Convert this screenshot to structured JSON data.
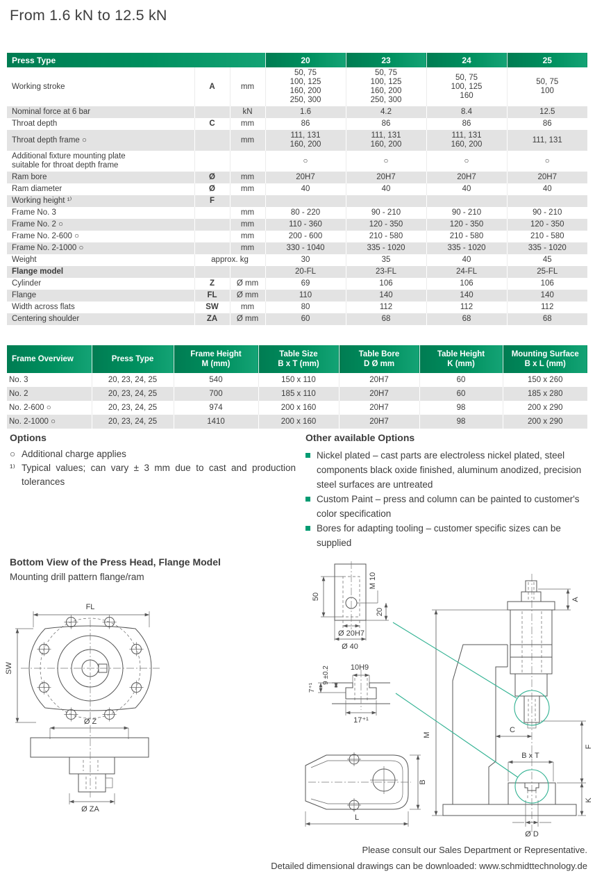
{
  "page": {
    "title": "From 1.6 kN to 12.5 kN",
    "footer_line1": "Please consult our Sales Department or Representative.",
    "footer_line2": "Detailed dimensional drawings can be downloaded: www.schmidttechnology.de"
  },
  "colors": {
    "header_green_dark": "#007C52",
    "header_green_light": "#14A375",
    "row_shaded": "#E3E3E3",
    "bullet_green": "#009B72",
    "drawing_green": "#2FB191"
  },
  "spec_table": {
    "header": {
      "label": "Press Type",
      "columns": [
        "20",
        "23",
        "24",
        "25"
      ]
    },
    "rows": [
      {
        "label": "Working stroke",
        "sym": "A",
        "unit": "mm",
        "shaded": false,
        "values": [
          [
            "50, 75",
            "100, 125",
            "160, 200",
            "250, 300"
          ],
          [
            "50, 75",
            "100, 125",
            "160, 200",
            "250, 300"
          ],
          [
            "50, 75",
            "100, 125",
            "160"
          ],
          [
            "50, 75",
            "100"
          ]
        ]
      },
      {
        "label": "Nominal force at 6 bar",
        "sym": "",
        "unit": "kN",
        "shaded": true,
        "values": [
          "1.6",
          "4.2",
          "8.4",
          "12.5"
        ]
      },
      {
        "label": "Throat depth",
        "sym": "C",
        "unit": "mm",
        "shaded": false,
        "values": [
          "86",
          "86",
          "86",
          "86"
        ]
      },
      {
        "label": "Throat depth frame ○",
        "sym": "",
        "unit": "mm",
        "shaded": true,
        "values": [
          [
            "111, 131",
            "160, 200"
          ],
          [
            "111, 131",
            "160, 200"
          ],
          [
            "111, 131",
            "160, 200"
          ],
          [
            "111, 131"
          ]
        ]
      },
      {
        "label": "Additional fixture mounting plate\nsuitable for throat depth frame",
        "sym": "",
        "unit": "",
        "shaded": false,
        "values": [
          "○",
          "○",
          "○",
          "○"
        ]
      },
      {
        "label": "Ram bore",
        "sym": "Ø",
        "unit": "mm",
        "shaded": true,
        "values": [
          "20H7",
          "20H7",
          "20H7",
          "20H7"
        ]
      },
      {
        "label": "Ram diameter",
        "sym": "Ø",
        "unit": "mm",
        "shaded": false,
        "values": [
          "40",
          "40",
          "40",
          "40"
        ]
      },
      {
        "label": "Working height ¹⁾",
        "sym": "F",
        "unit": "",
        "shaded": true,
        "values": [
          "",
          "",
          "",
          ""
        ]
      },
      {
        "label": "Frame No. 3",
        "sym": "",
        "unit": "mm",
        "shaded": false,
        "values": [
          "80 - 220",
          "90 - 210",
          "90 - 210",
          "90 - 210"
        ]
      },
      {
        "label": "Frame No. 2 ○",
        "sym": "",
        "unit": "mm",
        "shaded": true,
        "values": [
          "110 - 360",
          "120 - 350",
          "120 - 350",
          "120 - 350"
        ]
      },
      {
        "label": "Frame No. 2-600 ○",
        "sym": "",
        "unit": "mm",
        "shaded": false,
        "values": [
          "200 - 600",
          "210 - 580",
          "210 - 580",
          "210 - 580"
        ]
      },
      {
        "label": "Frame No. 2-1000 ○",
        "sym": "",
        "unit": "mm",
        "shaded": true,
        "values": [
          "330 - 1040",
          "335 - 1020",
          "335 - 1020",
          "335 - 1020"
        ]
      },
      {
        "label": "Weight",
        "unit_span": "approx. kg",
        "shaded": false,
        "values": [
          "30",
          "35",
          "40",
          "45"
        ]
      },
      {
        "label": "Flange model",
        "bold": true,
        "sym": "",
        "unit": "",
        "shaded": true,
        "values": [
          "20-FL",
          "23-FL",
          "24-FL",
          "25-FL"
        ]
      },
      {
        "label": "Cylinder",
        "sym": "Z",
        "unit": "Ø mm",
        "shaded": false,
        "values": [
          "69",
          "106",
          "106",
          "106"
        ]
      },
      {
        "label": "Flange",
        "sym": "FL",
        "unit": "Ø mm",
        "shaded": true,
        "values": [
          "110",
          "140",
          "140",
          "140"
        ]
      },
      {
        "label": "Width across flats",
        "sym": "SW",
        "unit": "mm",
        "shaded": false,
        "values": [
          "80",
          "112",
          "112",
          "112"
        ]
      },
      {
        "label": "Centering shoulder",
        "sym": "ZA",
        "unit": "Ø mm",
        "shaded": true,
        "values": [
          "60",
          "68",
          "68",
          "68"
        ]
      }
    ]
  },
  "frame_table": {
    "headers": [
      {
        "l1": "Frame Overview",
        "l2": ""
      },
      {
        "l1": "Press Type",
        "l2": ""
      },
      {
        "l1": "Frame Height",
        "l2": "M (mm)"
      },
      {
        "l1": "Table Size",
        "l2": "B x T (mm)"
      },
      {
        "l1": "Table Bore",
        "l2": "D Ø mm"
      },
      {
        "l1": "Table Height",
        "l2": "K (mm)"
      },
      {
        "l1": "Mounting Surface",
        "l2": "B x L (mm)"
      }
    ],
    "rows": [
      {
        "shaded": false,
        "cells": [
          "No. 3",
          "20, 23, 24, 25",
          "540",
          "150 x 110",
          "20H7",
          "60",
          "150 x 260"
        ]
      },
      {
        "shaded": true,
        "cells": [
          "No. 2",
          "20, 23, 24, 25",
          "700",
          "185 x 110",
          "20H7",
          "60",
          "185 x 280"
        ]
      },
      {
        "shaded": false,
        "cells": [
          "No. 2-600 ○",
          "20, 23, 24, 25",
          "974",
          "200 x 160",
          "20H7",
          "98",
          "200 x 290"
        ]
      },
      {
        "shaded": true,
        "cells": [
          "No. 2-1000 ○",
          "20, 23, 24, 25",
          "1410",
          "200 x 160",
          "20H7",
          "98",
          "200 x 290"
        ]
      }
    ]
  },
  "options": {
    "title": "Options",
    "items": [
      {
        "prefix": "○",
        "text": "Additional charge applies"
      },
      {
        "prefix": "¹⁾",
        "text": "Typical values; can vary ± 3 mm due to cast and production tolerances"
      }
    ]
  },
  "other_options": {
    "title": "Other available Options",
    "items": [
      "Nickel plated – cast parts are electroless nickel plated, steel components black oxide finished, aluminum anodized, precision steel surfaces are untreated",
      "Custom Paint – press and column can be painted to customer's color specification",
      "Bores for adapting tooling – customer specific sizes can be supplied"
    ]
  },
  "drawings": {
    "section_title": "Bottom View of the Press Head, Flange Model",
    "section_subtitle": "Mounting drill pattern flange/ram",
    "flange_bottom": {
      "fl": "FL",
      "sw": "SW",
      "dz": "Ø Z",
      "dza": "Ø ZA"
    },
    "ram_detail": {
      "d50": "50",
      "m10": "M 10",
      "d20": "20",
      "d20h7": "Ø 20H7",
      "d40": "Ø 40"
    },
    "tslot_detail": {
      "w": "10H9",
      "d9": "9 ±0.2",
      "d7": "7⁺¹",
      "d17": "17⁺¹"
    },
    "table_top": {
      "b": "B",
      "l": "L"
    },
    "press_side": {
      "a": "A",
      "m": "M",
      "c": "C",
      "f": "F",
      "k": "K",
      "bxt": "B x T",
      "dd": "Ø D"
    }
  }
}
